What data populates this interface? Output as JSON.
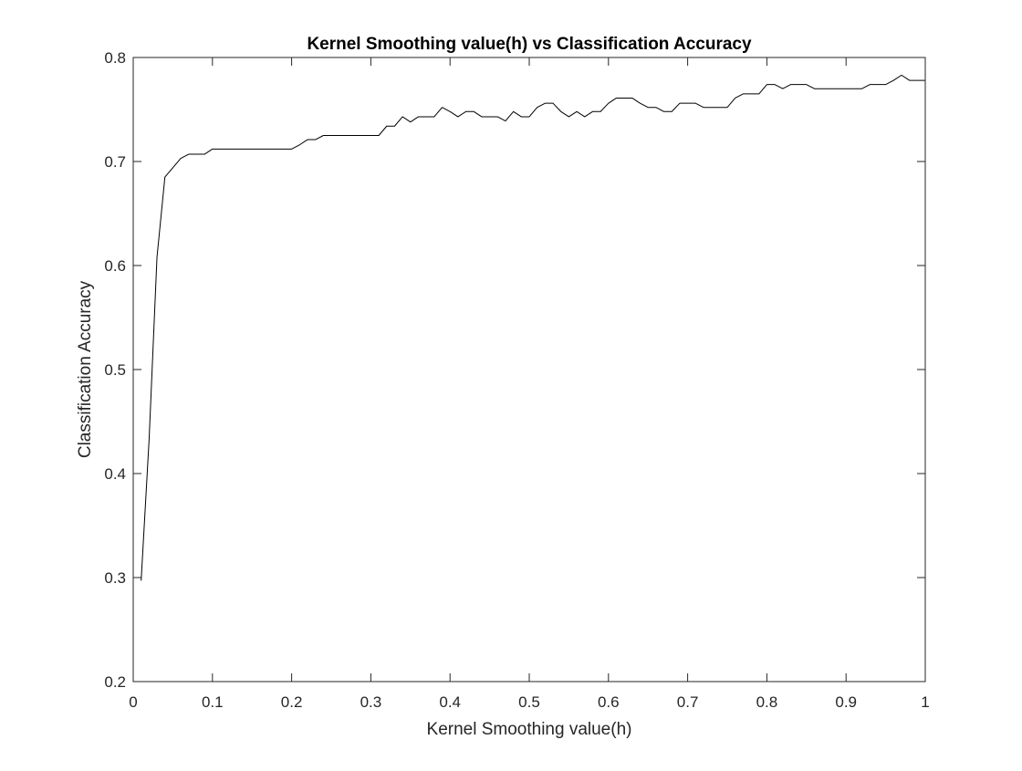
{
  "chart_data": {
    "type": "line",
    "title": "Kernel Smoothing value(h) vs Classification Accuracy",
    "xlabel": "Kernel Smoothing value(h)",
    "ylabel": "Classification Accuracy",
    "xlim": [
      0,
      1
    ],
    "ylim": [
      0.2,
      0.8
    ],
    "xticks": [
      "0",
      "0.1",
      "0.2",
      "0.3",
      "0.4",
      "0.5",
      "0.6",
      "0.7",
      "0.8",
      "0.9",
      "1"
    ],
    "yticks": [
      "0.2",
      "0.3",
      "0.4",
      "0.5",
      "0.6",
      "0.7",
      "0.8"
    ],
    "grid": false,
    "line_color": "#000000",
    "series": [
      {
        "x": [
          0.01,
          0.02,
          0.03,
          0.04,
          0.05,
          0.06,
          0.07,
          0.08,
          0.09,
          0.1,
          0.11,
          0.12,
          0.13,
          0.14,
          0.15,
          0.16,
          0.17,
          0.18,
          0.19,
          0.2,
          0.21,
          0.22,
          0.23,
          0.24,
          0.25,
          0.26,
          0.27,
          0.28,
          0.29,
          0.3,
          0.31,
          0.32,
          0.33,
          0.34,
          0.35,
          0.36,
          0.37,
          0.38,
          0.39,
          0.4,
          0.41,
          0.42,
          0.43,
          0.44,
          0.45,
          0.46,
          0.47,
          0.48,
          0.49,
          0.5,
          0.51,
          0.52,
          0.53,
          0.54,
          0.55,
          0.56,
          0.57,
          0.58,
          0.59,
          0.6,
          0.61,
          0.62,
          0.63,
          0.64,
          0.65,
          0.66,
          0.67,
          0.68,
          0.69,
          0.7,
          0.71,
          0.72,
          0.73,
          0.74,
          0.75,
          0.76,
          0.77,
          0.78,
          0.79,
          0.8,
          0.81,
          0.82,
          0.83,
          0.84,
          0.85,
          0.86,
          0.87,
          0.88,
          0.89,
          0.9,
          0.91,
          0.92,
          0.93,
          0.94,
          0.95,
          0.96,
          0.97,
          0.98,
          0.99,
          1.0
        ],
        "y": [
          0.297,
          0.432,
          0.608,
          0.685,
          0.694,
          0.703,
          0.707,
          0.707,
          0.707,
          0.712,
          0.712,
          0.712,
          0.712,
          0.712,
          0.712,
          0.712,
          0.712,
          0.712,
          0.712,
          0.712,
          0.716,
          0.721,
          0.721,
          0.725,
          0.725,
          0.725,
          0.725,
          0.725,
          0.725,
          0.725,
          0.725,
          0.734,
          0.734,
          0.743,
          0.738,
          0.743,
          0.743,
          0.743,
          0.752,
          0.748,
          0.743,
          0.748,
          0.748,
          0.743,
          0.743,
          0.743,
          0.739,
          0.748,
          0.743,
          0.743,
          0.752,
          0.756,
          0.756,
          0.748,
          0.743,
          0.748,
          0.743,
          0.748,
          0.748,
          0.756,
          0.761,
          0.761,
          0.761,
          0.756,
          0.752,
          0.752,
          0.748,
          0.748,
          0.756,
          0.756,
          0.756,
          0.752,
          0.752,
          0.752,
          0.752,
          0.761,
          0.765,
          0.765,
          0.765,
          0.774,
          0.774,
          0.77,
          0.774,
          0.774,
          0.774,
          0.77,
          0.77,
          0.77,
          0.77,
          0.77,
          0.77,
          0.77,
          0.774,
          0.774,
          0.774,
          0.778,
          0.783,
          0.778,
          0.778,
          0.778
        ]
      }
    ]
  }
}
